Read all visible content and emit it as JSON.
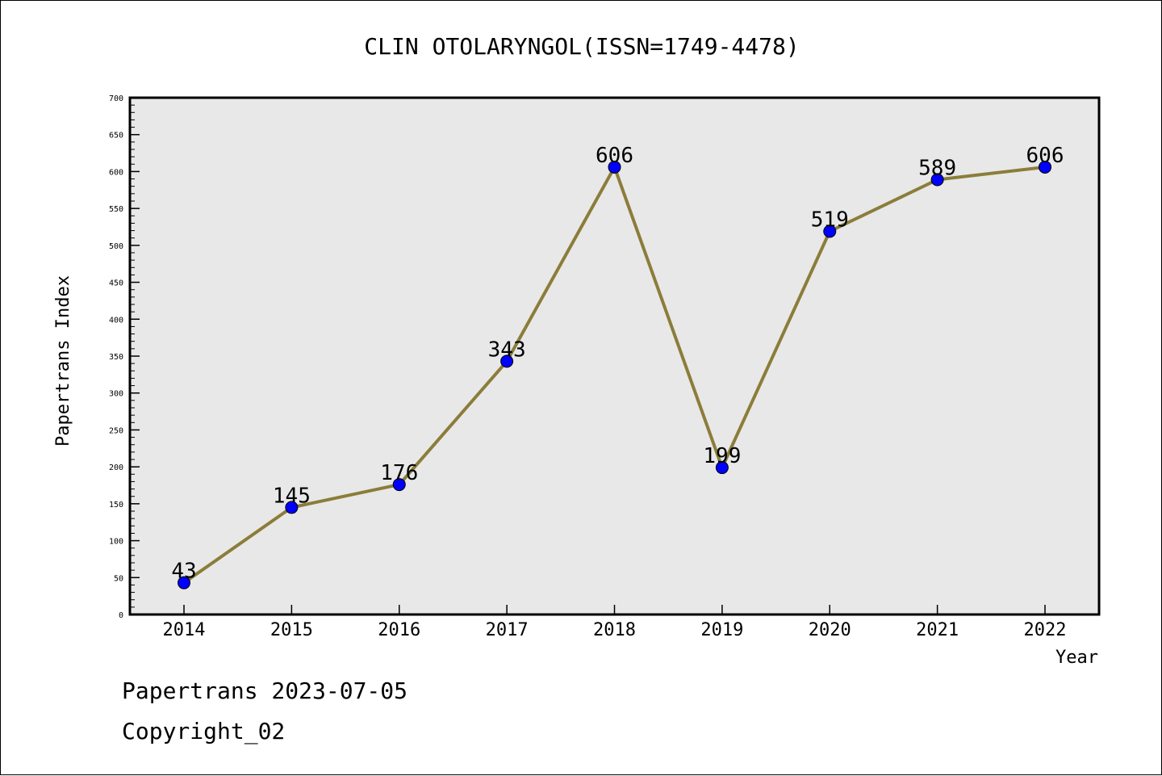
{
  "chart_data": {
    "type": "line",
    "title": "CLIN OTOLARYNGOL(ISSN=1749-4478)",
    "xlabel": "Year",
    "ylabel": "Papertrans Index",
    "categories": [
      "2014",
      "2015",
      "2016",
      "2017",
      "2018",
      "2019",
      "2020",
      "2021",
      "2022"
    ],
    "series": [
      {
        "values": [
          43,
          145,
          176,
          343,
          606,
          199,
          519,
          589,
          606
        ],
        "line_color": "#8b7d3a",
        "marker_color": "#0000ff"
      }
    ],
    "ylim": [
      0,
      700
    ],
    "yticks": [
      0,
      50,
      100,
      150,
      200,
      250,
      300,
      350,
      400,
      450,
      500,
      550,
      600,
      650,
      700
    ],
    "y_minor_step": 10,
    "grid": false,
    "plot_background": "#e8e8e8",
    "legend": "none"
  },
  "footer": {
    "line1": "Papertrans 2023-07-05",
    "line2": "Copyright_02"
  }
}
